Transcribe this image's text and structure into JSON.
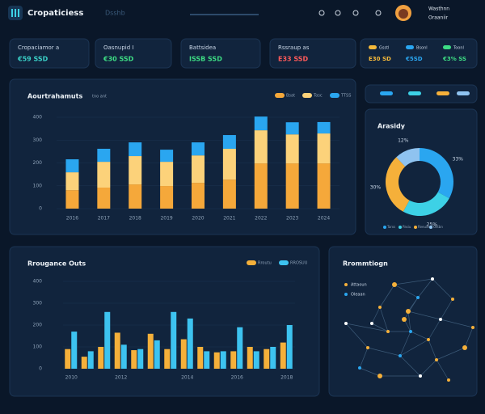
{
  "header": {
    "title": "Cropaticiess",
    "subtitle": "Dsshb",
    "user": "Wasthnn",
    "role": "Oraaniir"
  },
  "kpis": [
    {
      "label": "Cropaciamor a",
      "value": "€59 SSD",
      "color": "#3ad1c8"
    },
    {
      "label": "Oasnupid I",
      "value": "€30 SSD",
      "color": "#3ddc84"
    },
    {
      "label": "Battsidea",
      "value": "ISSB SSD",
      "color": "#3ddc84"
    },
    {
      "label": "Rssraup as",
      "value": "E33 SSD",
      "color": "#ff5a5a"
    }
  ],
  "status": [
    {
      "label": "Gsstl",
      "value": "E30 SD",
      "color": "#f5b93a"
    },
    {
      "label": "Bsonl",
      "value": "€5SD",
      "color": "#2aa6f0"
    },
    {
      "label": "Toonl",
      "value": "€3% SS",
      "color": "#3ddc84"
    }
  ],
  "chart_data": [
    {
      "type": "bar",
      "stacked": true,
      "title": "Aourtrahamuts",
      "subtitle": "tno ant",
      "categories": [
        "2016",
        "2017",
        "2018",
        "2019",
        "2020",
        "2021",
        "2022",
        "2023",
        "2024"
      ],
      "series": [
        {
          "name": "Bsat",
          "color": "#f5a83a",
          "values": [
            81,
            92,
            106,
            99,
            113,
            127,
            198,
            198,
            198
          ]
        },
        {
          "name": "Tosc",
          "color": "#fcd27a",
          "values": [
            78,
            113,
            124,
            106,
            120,
            135,
            145,
            127,
            131
          ]
        },
        {
          "name": "TTSS",
          "color": "#2aa6f0",
          "values": [
            57,
            57,
            60,
            53,
            57,
            60,
            60,
            53,
            50
          ]
        }
      ],
      "ylim": [
        0,
        400
      ],
      "yticks": [
        0,
        100,
        200,
        300,
        400
      ]
    },
    {
      "type": "pie",
      "title": "Arasidy",
      "categories": [
        "Tarxs",
        "Pasiu",
        "Reeuiu",
        "Ostbn"
      ],
      "values": [
        33,
        25,
        30,
        12
      ],
      "value_labels": [
        "33%",
        "25%",
        "30%",
        "12%"
      ],
      "colors": [
        "#2aa6f0",
        "#3dd1e6",
        "#f5b03a",
        "#8fc3f0"
      ]
    },
    {
      "type": "bar",
      "stacked": false,
      "title": "Rrougance Outs",
      "categories": [
        "2010",
        null,
        null,
        "2012",
        null,
        null,
        null,
        "2014",
        null,
        null,
        "2016",
        null,
        null,
        "2018"
      ],
      "series": [
        {
          "name": "Rroutu",
          "color": "#f5b03a",
          "values": [
            90,
            55,
            100,
            165,
            85,
            160,
            90,
            135,
            100,
            75,
            80,
            100,
            90,
            120
          ]
        },
        {
          "name": "RROSUU",
          "color": "#3dc3f0",
          "values": [
            170,
            80,
            260,
            110,
            90,
            130,
            260,
            230,
            80,
            80,
            190,
            80,
            100,
            200
          ]
        }
      ],
      "ylim": [
        0,
        400
      ],
      "yticks": [
        0,
        100,
        200,
        300,
        400
      ]
    }
  ],
  "network": {
    "title": "Rrommtiogn",
    "legend": [
      "Attaoun",
      "Oleaan"
    ]
  }
}
